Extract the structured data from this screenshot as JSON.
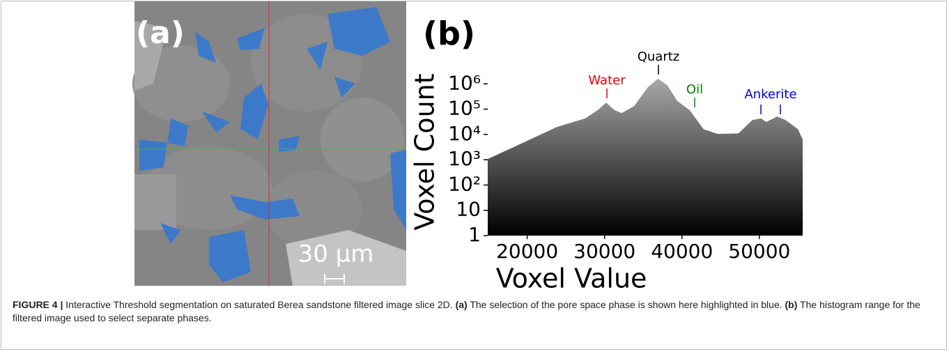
{
  "figure": {
    "label": "FIGURE 4 |",
    "caption": [
      "Interactive Threshold segmentation on saturated Berea sandstone filtered image slice 2D.",
      "(a)",
      "The selection of the pore space phase is shown here highlighted in blue.",
      "(b)",
      "The histogram range for the filtered image used to select separate phases."
    ]
  },
  "panel_a": {
    "label": "(a)",
    "scale_bar": "30 µm"
  },
  "chart_data": {
    "type": "area",
    "panel_label": "(b)",
    "xlabel": "Voxel Value",
    "ylabel": "Voxel Count",
    "x": [
      14900,
      19400,
      23900,
      27500,
      29100,
      30200,
      31300,
      32200,
      33800,
      35600,
      36900,
      38100,
      39400,
      41000,
      42800,
      44600,
      47300,
      49100,
      50200,
      50900,
      52300,
      53400,
      55000,
      55600
    ],
    "values": [
      1070,
      4600,
      20000,
      43000,
      91000,
      180000,
      91000,
      70000,
      130000,
      740000,
      1600000,
      890000,
      210000,
      91000,
      16000,
      10500,
      11000,
      37000,
      43000,
      31000,
      51000,
      37000,
      16000,
      6300
    ],
    "fill_gradient": [
      "#a8a8a8",
      "#000000"
    ],
    "xlim": [
      14900,
      55600
    ],
    "xticks": [
      20000,
      30000,
      40000,
      50000
    ],
    "ylim": [
      1,
      10000000
    ],
    "log_scale": true,
    "yticks": [
      1,
      10,
      {
        "value": 100,
        "label": "10²"
      },
      {
        "value": 1000,
        "label": "10³"
      },
      {
        "value": 10000,
        "label": "10⁴"
      },
      {
        "value": 100000,
        "label": "10⁵"
      },
      {
        "value": 1000000,
        "label": "10⁶"
      }
    ],
    "annotations": [
      {
        "text": "Water",
        "color": "#e00000"
      },
      {
        "text": "Quartz",
        "color": "#000000"
      },
      {
        "text": "Oil",
        "color": "#008000"
      },
      {
        "text": "Ankerite",
        "color": "#0000e0"
      }
    ]
  }
}
